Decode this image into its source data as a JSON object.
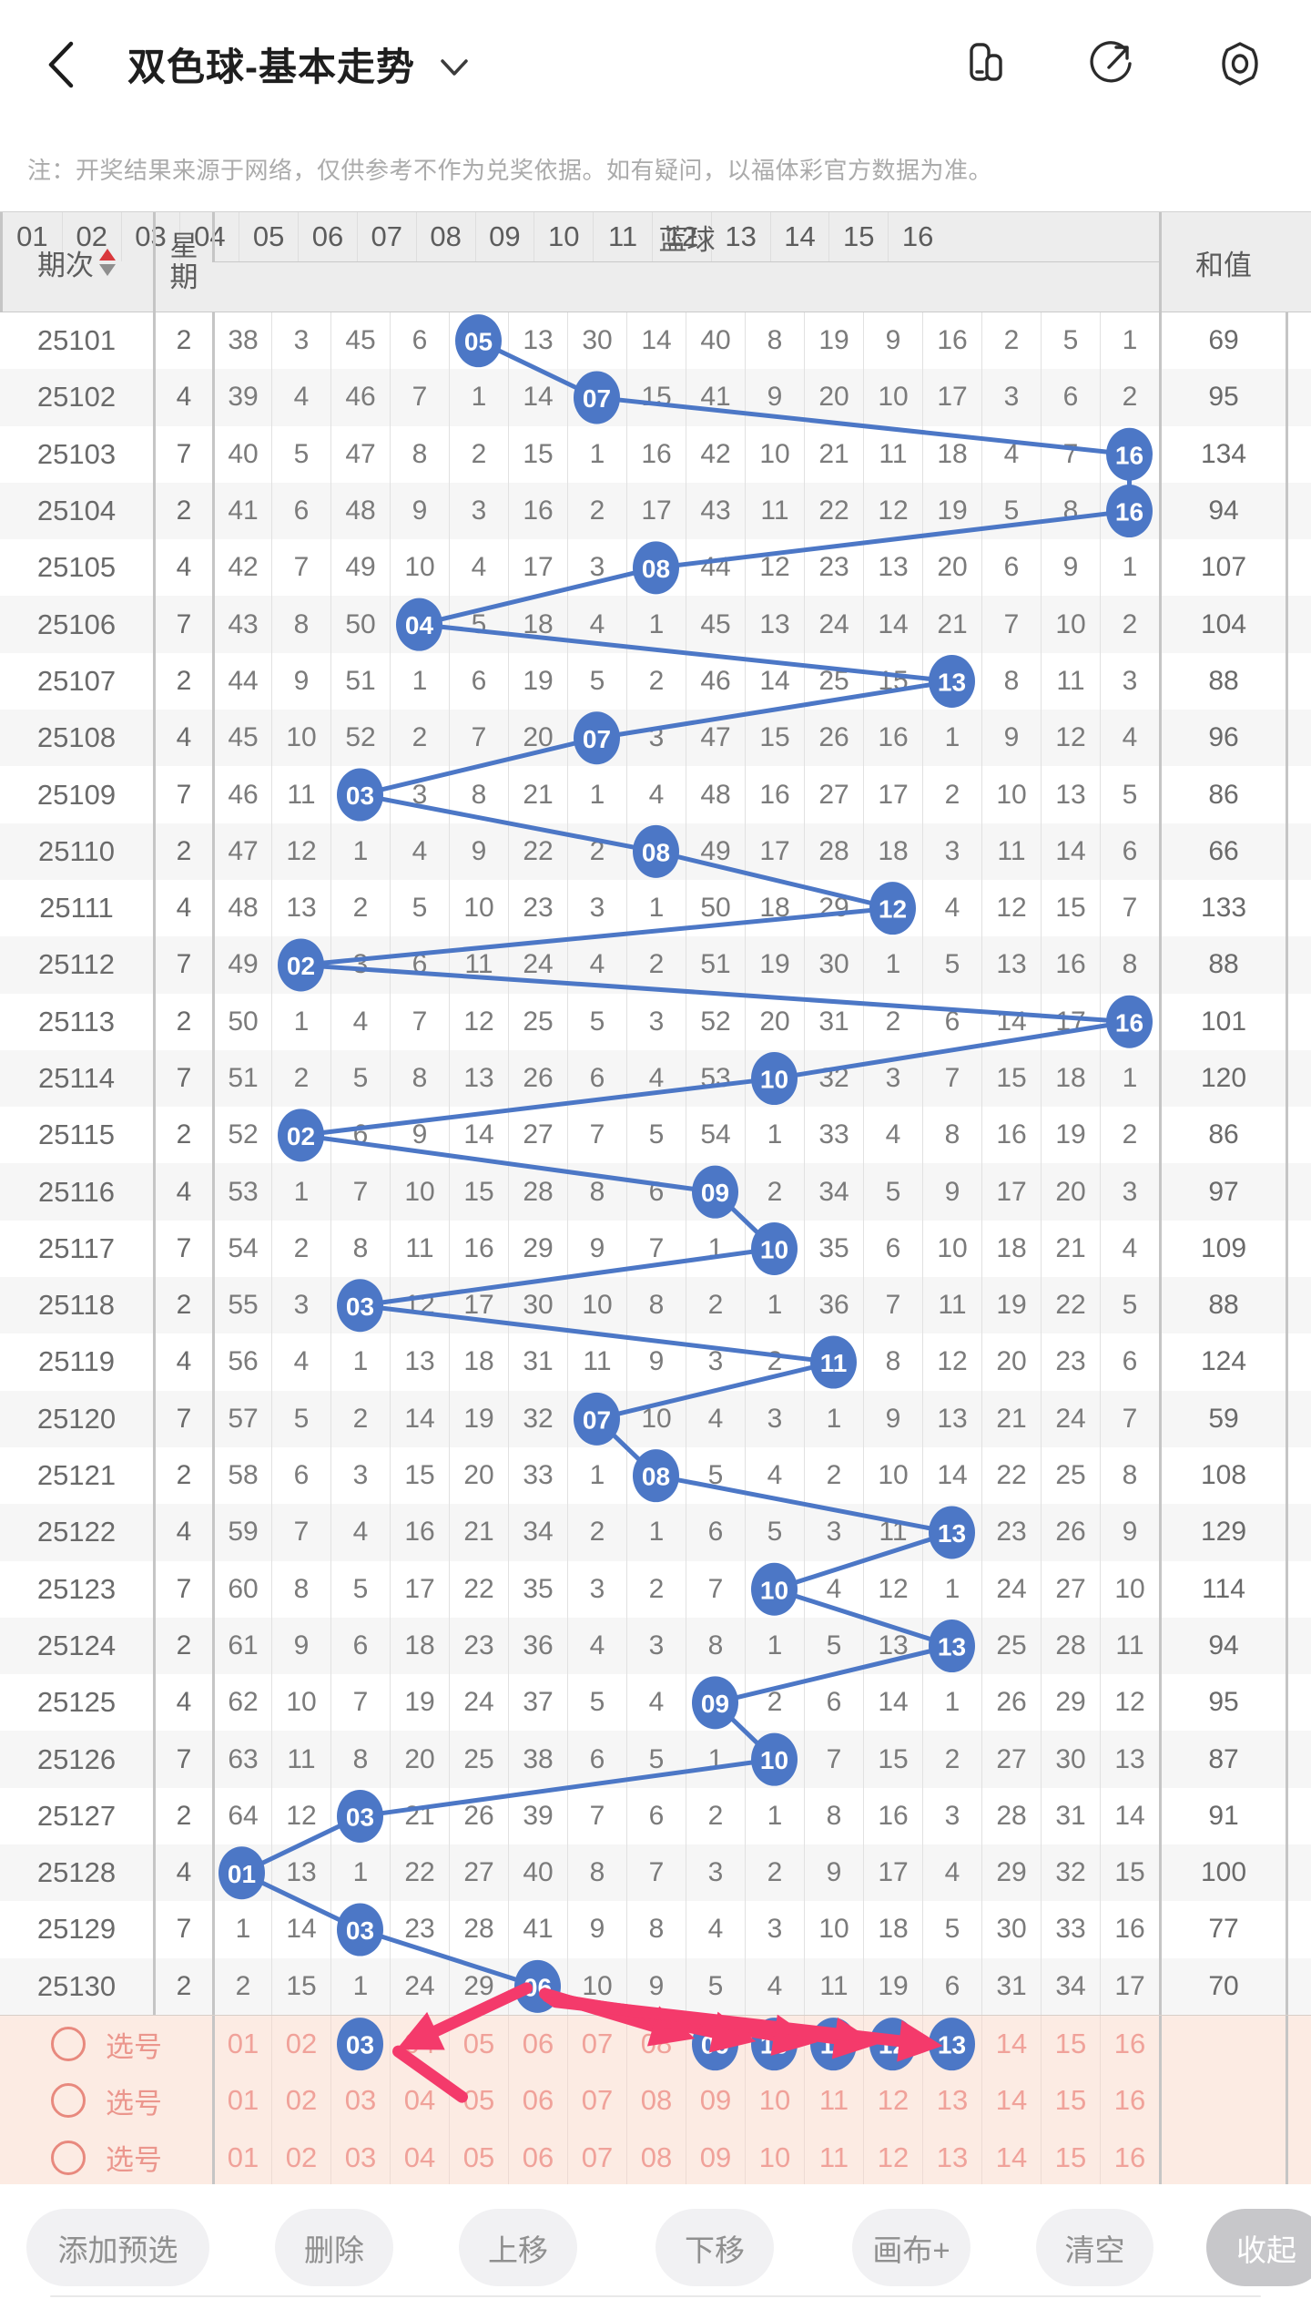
{
  "app_bar": {
    "title": "双色球-基本走势",
    "back_icon": "chevron-left",
    "title_dropdown_icon": "chevron-down",
    "right_icons": [
      "card-view-icon",
      "share-icon",
      "settings-icon"
    ]
  },
  "notice": "注：开奖结果来源于网络，仅供参考不作为兑奖依据。如有疑问，以福体彩官方数据为准。",
  "table": {
    "col_period": "期次",
    "col_week": "星期",
    "group_blue": "蓝球",
    "col_sum": "和值",
    "ball_headers": [
      "01",
      "02",
      "03",
      "04",
      "05",
      "06",
      "07",
      "08",
      "09",
      "10",
      "11",
      "12",
      "13",
      "14",
      "15",
      "16"
    ],
    "rows": [
      {
        "period": "25101",
        "week": "2",
        "cells": [
          "38",
          "3",
          "45",
          "6",
          "05",
          "13",
          "30",
          "14",
          "40",
          "8",
          "19",
          "9",
          "16",
          "2",
          "5",
          "1"
        ],
        "hit": 4,
        "sum": "69"
      },
      {
        "period": "25102",
        "week": "4",
        "cells": [
          "39",
          "4",
          "46",
          "7",
          "1",
          "14",
          "07",
          "15",
          "41",
          "9",
          "20",
          "10",
          "17",
          "3",
          "6",
          "2"
        ],
        "hit": 6,
        "sum": "95"
      },
      {
        "period": "25103",
        "week": "7",
        "cells": [
          "40",
          "5",
          "47",
          "8",
          "2",
          "15",
          "1",
          "16",
          "42",
          "10",
          "21",
          "11",
          "18",
          "4",
          "7",
          "16"
        ],
        "hit": 15,
        "sum": "134"
      },
      {
        "period": "25104",
        "week": "2",
        "cells": [
          "41",
          "6",
          "48",
          "9",
          "3",
          "16",
          "2",
          "17",
          "43",
          "11",
          "22",
          "12",
          "19",
          "5",
          "8",
          "16"
        ],
        "hit": 15,
        "sum": "94"
      },
      {
        "period": "25105",
        "week": "4",
        "cells": [
          "42",
          "7",
          "49",
          "10",
          "4",
          "17",
          "3",
          "08",
          "44",
          "12",
          "23",
          "13",
          "20",
          "6",
          "9",
          "1"
        ],
        "hit": 7,
        "sum": "107"
      },
      {
        "period": "25106",
        "week": "7",
        "cells": [
          "43",
          "8",
          "50",
          "04",
          "5",
          "18",
          "4",
          "1",
          "45",
          "13",
          "24",
          "14",
          "21",
          "7",
          "10",
          "2"
        ],
        "hit": 3,
        "sum": "104"
      },
      {
        "period": "25107",
        "week": "2",
        "cells": [
          "44",
          "9",
          "51",
          "1",
          "6",
          "19",
          "5",
          "2",
          "46",
          "14",
          "25",
          "15",
          "13",
          "8",
          "11",
          "3"
        ],
        "hit": 12,
        "sum": "88"
      },
      {
        "period": "25108",
        "week": "4",
        "cells": [
          "45",
          "10",
          "52",
          "2",
          "7",
          "20",
          "07",
          "3",
          "47",
          "15",
          "26",
          "16",
          "1",
          "9",
          "12",
          "4"
        ],
        "hit": 6,
        "sum": "96"
      },
      {
        "period": "25109",
        "week": "7",
        "cells": [
          "46",
          "11",
          "03",
          "3",
          "8",
          "21",
          "1",
          "4",
          "48",
          "16",
          "27",
          "17",
          "2",
          "10",
          "13",
          "5"
        ],
        "hit": 2,
        "sum": "86"
      },
      {
        "period": "25110",
        "week": "2",
        "cells": [
          "47",
          "12",
          "1",
          "4",
          "9",
          "22",
          "2",
          "08",
          "49",
          "17",
          "28",
          "18",
          "3",
          "11",
          "14",
          "6"
        ],
        "hit": 7,
        "sum": "66"
      },
      {
        "period": "25111",
        "week": "4",
        "cells": [
          "48",
          "13",
          "2",
          "5",
          "10",
          "23",
          "3",
          "1",
          "50",
          "18",
          "29",
          "12",
          "4",
          "12",
          "15",
          "7"
        ],
        "hit": 11,
        "sum": "133"
      },
      {
        "period": "25112",
        "week": "7",
        "cells": [
          "49",
          "02",
          "3",
          "6",
          "11",
          "24",
          "4",
          "2",
          "51",
          "19",
          "30",
          "1",
          "5",
          "13",
          "16",
          "8"
        ],
        "hit": 1,
        "sum": "88"
      },
      {
        "period": "25113",
        "week": "2",
        "cells": [
          "50",
          "1",
          "4",
          "7",
          "12",
          "25",
          "5",
          "3",
          "52",
          "20",
          "31",
          "2",
          "6",
          "14",
          "17",
          "16"
        ],
        "hit": 15,
        "sum": "101"
      },
      {
        "period": "25114",
        "week": "7",
        "cells": [
          "51",
          "2",
          "5",
          "8",
          "13",
          "26",
          "6",
          "4",
          "53",
          "10",
          "32",
          "3",
          "7",
          "15",
          "18",
          "1"
        ],
        "hit": 9,
        "sum": "120"
      },
      {
        "period": "25115",
        "week": "2",
        "cells": [
          "52",
          "02",
          "6",
          "9",
          "14",
          "27",
          "7",
          "5",
          "54",
          "1",
          "33",
          "4",
          "8",
          "16",
          "19",
          "2"
        ],
        "hit": 1,
        "sum": "86"
      },
      {
        "period": "25116",
        "week": "4",
        "cells": [
          "53",
          "1",
          "7",
          "10",
          "15",
          "28",
          "8",
          "6",
          "09",
          "2",
          "34",
          "5",
          "9",
          "17",
          "20",
          "3"
        ],
        "hit": 8,
        "sum": "97"
      },
      {
        "period": "25117",
        "week": "7",
        "cells": [
          "54",
          "2",
          "8",
          "11",
          "16",
          "29",
          "9",
          "7",
          "1",
          "10",
          "35",
          "6",
          "10",
          "18",
          "21",
          "4"
        ],
        "hit": 9,
        "sum": "109"
      },
      {
        "period": "25118",
        "week": "2",
        "cells": [
          "55",
          "3",
          "03",
          "12",
          "17",
          "30",
          "10",
          "8",
          "2",
          "1",
          "36",
          "7",
          "11",
          "19",
          "22",
          "5"
        ],
        "hit": 2,
        "sum": "88"
      },
      {
        "period": "25119",
        "week": "4",
        "cells": [
          "56",
          "4",
          "1",
          "13",
          "18",
          "31",
          "11",
          "9",
          "3",
          "2",
          "11",
          "8",
          "12",
          "20",
          "23",
          "6"
        ],
        "hit": 10,
        "sum": "124"
      },
      {
        "period": "25120",
        "week": "7",
        "cells": [
          "57",
          "5",
          "2",
          "14",
          "19",
          "32",
          "07",
          "10",
          "4",
          "3",
          "1",
          "9",
          "13",
          "21",
          "24",
          "7"
        ],
        "hit": 6,
        "sum": "59"
      },
      {
        "period": "25121",
        "week": "2",
        "cells": [
          "58",
          "6",
          "3",
          "15",
          "20",
          "33",
          "1",
          "08",
          "5",
          "4",
          "2",
          "10",
          "14",
          "22",
          "25",
          "8"
        ],
        "hit": 7,
        "sum": "108"
      },
      {
        "period": "25122",
        "week": "4",
        "cells": [
          "59",
          "7",
          "4",
          "16",
          "21",
          "34",
          "2",
          "1",
          "6",
          "5",
          "3",
          "11",
          "13",
          "23",
          "26",
          "9"
        ],
        "hit": 12,
        "sum": "129"
      },
      {
        "period": "25123",
        "week": "7",
        "cells": [
          "60",
          "8",
          "5",
          "17",
          "22",
          "35",
          "3",
          "2",
          "7",
          "10",
          "4",
          "12",
          "1",
          "24",
          "27",
          "10"
        ],
        "hit": 9,
        "sum": "114"
      },
      {
        "period": "25124",
        "week": "2",
        "cells": [
          "61",
          "9",
          "6",
          "18",
          "23",
          "36",
          "4",
          "3",
          "8",
          "1",
          "5",
          "13",
          "13",
          "25",
          "28",
          "11"
        ],
        "hit": 12,
        "sum": "94"
      },
      {
        "period": "25125",
        "week": "4",
        "cells": [
          "62",
          "10",
          "7",
          "19",
          "24",
          "37",
          "5",
          "4",
          "09",
          "2",
          "6",
          "14",
          "1",
          "26",
          "29",
          "12"
        ],
        "hit": 8,
        "sum": "95"
      },
      {
        "period": "25126",
        "week": "7",
        "cells": [
          "63",
          "11",
          "8",
          "20",
          "25",
          "38",
          "6",
          "5",
          "1",
          "10",
          "7",
          "15",
          "2",
          "27",
          "30",
          "13"
        ],
        "hit": 9,
        "sum": "87"
      },
      {
        "period": "25127",
        "week": "2",
        "cells": [
          "64",
          "12",
          "03",
          "21",
          "26",
          "39",
          "7",
          "6",
          "2",
          "1",
          "8",
          "16",
          "3",
          "28",
          "31",
          "14"
        ],
        "hit": 2,
        "sum": "91"
      },
      {
        "period": "25128",
        "week": "4",
        "cells": [
          "01",
          "13",
          "1",
          "22",
          "27",
          "40",
          "8",
          "7",
          "3",
          "2",
          "9",
          "17",
          "4",
          "29",
          "32",
          "15"
        ],
        "hit": 0,
        "sum": "100"
      },
      {
        "period": "25129",
        "week": "7",
        "cells": [
          "1",
          "14",
          "03",
          "23",
          "28",
          "41",
          "9",
          "8",
          "4",
          "3",
          "10",
          "18",
          "5",
          "30",
          "33",
          "16"
        ],
        "hit": 2,
        "sum": "77"
      },
      {
        "period": "25130",
        "week": "2",
        "cells": [
          "2",
          "15",
          "1",
          "24",
          "29",
          "06",
          "10",
          "9",
          "5",
          "4",
          "11",
          "19",
          "6",
          "31",
          "34",
          "17"
        ],
        "hit": 5,
        "sum": "70"
      }
    ]
  },
  "selection": {
    "label": "选号",
    "numbers": [
      "01",
      "02",
      "03",
      "04",
      "05",
      "06",
      "07",
      "08",
      "09",
      "10",
      "11",
      "12",
      "13",
      "14",
      "15",
      "16"
    ],
    "rows": [
      {
        "selected": [
          2,
          8,
          9,
          10,
          11,
          12
        ]
      },
      {
        "selected": []
      },
      {
        "selected": []
      }
    ]
  },
  "annotations": {
    "description": "hand-drawn canvas arrows from ball 06 of period 25130 to selected numbers in selection row 1",
    "arrows": [
      {
        "from": "row-25130-ball-06",
        "to": "selection-1-num-03"
      },
      {
        "from": "row-25130-ball-06",
        "to": "selection-1-num-09"
      },
      {
        "from": "row-25130-ball-06",
        "to": "selection-1-num-10"
      },
      {
        "from": "row-25130-ball-06",
        "to": "selection-1-num-11"
      },
      {
        "from": "row-25130-ball-06",
        "to": "selection-1-num-12"
      },
      {
        "from": "row-25130-ball-06",
        "to": "selection-1-num-13"
      }
    ]
  },
  "toolbar": {
    "buttons": [
      "添加预选",
      "删除",
      "上移",
      "下移",
      "画布+",
      "清空",
      "收起"
    ]
  },
  "colors": {
    "ball_blue": "#4C77C6",
    "trend_line": "#4C77C6",
    "arrow_pink": "#F43A6B",
    "selection_bg": "#FCEBE3",
    "selection_text": "#F0A29A",
    "sort_up_red": "#D9383C",
    "header_bg": "#EDEDED"
  }
}
